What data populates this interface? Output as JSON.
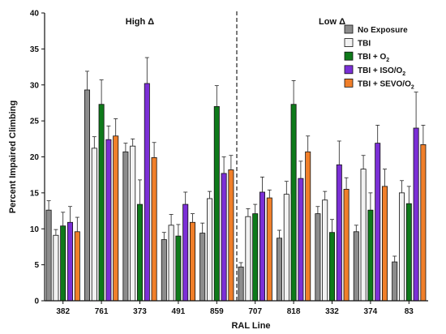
{
  "chart_data": {
    "type": "bar",
    "title": "",
    "xlabel": "RAL Line",
    "ylabel": "Percent Impaired Climbing",
    "ylim": [
      0,
      40
    ],
    "yticks": [
      0,
      5,
      10,
      15,
      20,
      25,
      30,
      35,
      40
    ],
    "grid": false,
    "legend_position": "top-right",
    "categories": [
      "382",
      "761",
      "373",
      "491",
      "859",
      "707",
      "818",
      "332",
      "374",
      "83"
    ],
    "group_labels": [
      {
        "text": "High Δ",
        "category_range": [
          "382",
          "859"
        ]
      },
      {
        "text": "Low Δ",
        "category_range": [
          "707",
          "83"
        ]
      }
    ],
    "divider": {
      "between": [
        "859",
        "707"
      ],
      "style": "dashed"
    },
    "series": [
      {
        "name": "No Exposure",
        "color": "#8c8c8c",
        "values": [
          12.6,
          29.3,
          20.7,
          8.5,
          9.4,
          4.7,
          8.7,
          12.1,
          9.6,
          5.4
        ],
        "errors": [
          1.3,
          2.6,
          1.2,
          1.0,
          1.4,
          0.6,
          1.1,
          1.0,
          0.9,
          0.8
        ]
      },
      {
        "name": "TBI",
        "color": "#f2f2f2",
        "values": [
          9.1,
          21.2,
          21.5,
          10.5,
          14.2,
          11.7,
          14.8,
          14.0,
          18.3,
          15.0
        ],
        "errors": [
          0.8,
          1.6,
          1.0,
          1.5,
          1.0,
          1.1,
          1.8,
          1.2,
          1.9,
          1.7
        ]
      },
      {
        "name": "TBI + O2",
        "color": "#0e7a1a",
        "values": [
          10.4,
          27.3,
          13.4,
          9.0,
          27.0,
          12.1,
          27.3,
          9.5,
          12.6,
          13.5
        ],
        "errors": [
          1.9,
          3.4,
          3.4,
          1.6,
          2.9,
          1.3,
          3.3,
          1.8,
          2.4,
          2.4
        ]
      },
      {
        "name": "TBI + ISO/O2",
        "color": "#7b2fd6",
        "values": [
          10.9,
          22.4,
          30.2,
          13.4,
          17.7,
          15.1,
          17.0,
          18.9,
          21.9,
          24.0
        ],
        "errors": [
          2.2,
          1.9,
          3.6,
          1.7,
          2.3,
          2.1,
          2.4,
          3.3,
          2.5,
          5.0
        ]
      },
      {
        "name": "TBI + SEVO/O2",
        "color": "#f07f2a",
        "values": [
          9.6,
          22.9,
          19.9,
          10.9,
          18.2,
          14.3,
          20.7,
          15.5,
          15.9,
          21.7
        ],
        "errors": [
          2.0,
          2.4,
          2.1,
          1.2,
          2.0,
          1.1,
          2.2,
          1.6,
          2.4,
          2.7
        ]
      }
    ],
    "legend": [
      {
        "label": "No Exposure",
        "sub": ""
      },
      {
        "label": "TBI",
        "sub": ""
      },
      {
        "label": "TBI + O",
        "sub": "2"
      },
      {
        "label": "TBI + ISO/O",
        "sub": "2"
      },
      {
        "label": "TBI + SEVO/O",
        "sub": "2"
      }
    ]
  }
}
